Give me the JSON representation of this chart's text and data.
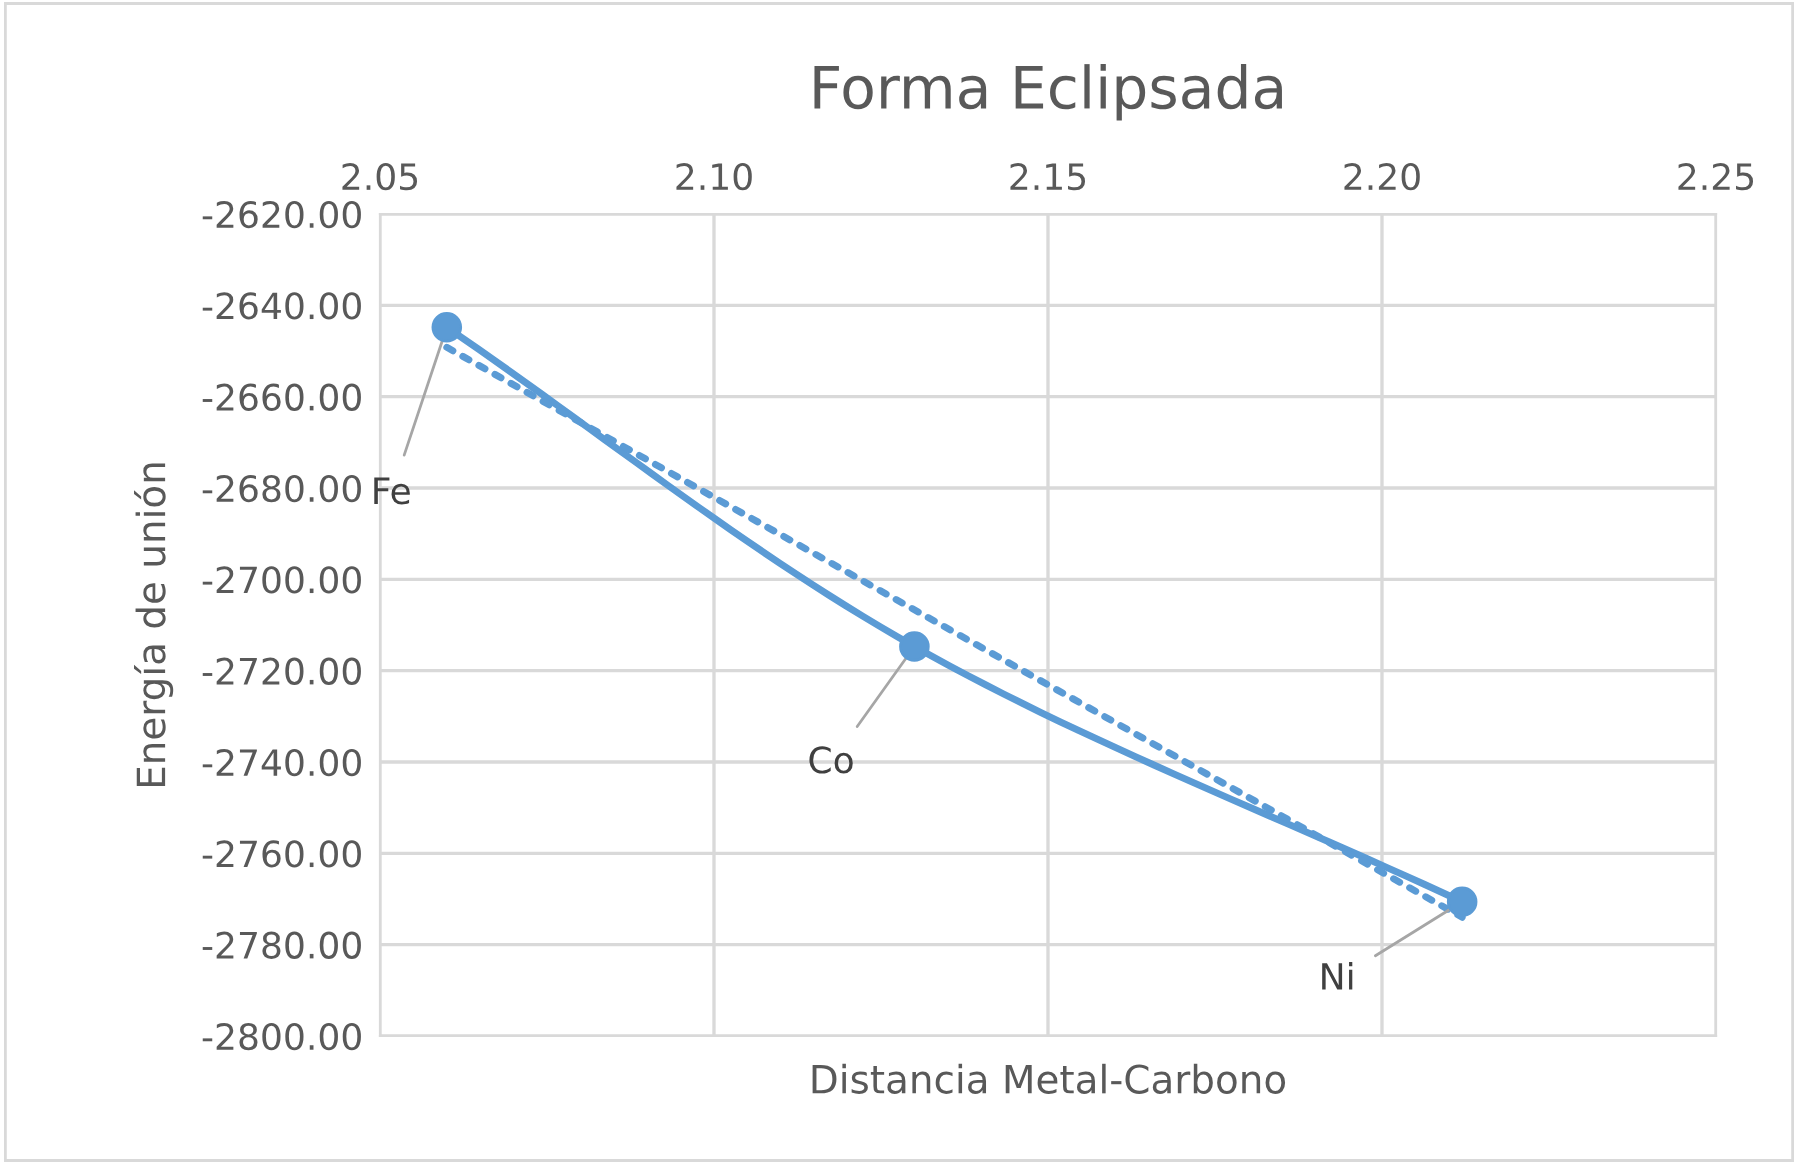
{
  "chart_data": {
    "type": "line",
    "title": "Forma Eclipsada",
    "xlabel": "Distancia Metal-Carbono",
    "ylabel": "Energía de unión",
    "xlim": [
      2.05,
      2.25
    ],
    "xticks": [
      {
        "value": 2.05,
        "label": "2.05"
      },
      {
        "value": 2.1,
        "label": "2.10"
      },
      {
        "value": 2.15,
        "label": "2.15"
      },
      {
        "value": 2.2,
        "label": "2.20"
      },
      {
        "value": 2.25,
        "label": "2.25"
      }
    ],
    "ylim": [
      -2800,
      -2620
    ],
    "yticks": [
      {
        "value": -2800,
        "label": "-2800.00"
      },
      {
        "value": -2780,
        "label": "-2780.00"
      },
      {
        "value": -2760,
        "label": "-2760.00"
      },
      {
        "value": -2740,
        "label": "-2740.00"
      },
      {
        "value": -2720,
        "label": "-2720.00"
      },
      {
        "value": -2700,
        "label": "-2700.00"
      },
      {
        "value": -2680,
        "label": "-2680.00"
      },
      {
        "value": -2660,
        "label": "-2660.00"
      },
      {
        "value": -2640,
        "label": "-2640.00"
      },
      {
        "value": -2620,
        "label": "-2620.00"
      }
    ],
    "grid": true,
    "legend": false,
    "series": [
      {
        "color": "#5b9bd5",
        "x": [
          2.06,
          2.13,
          2.212
        ],
        "values": [
          -2644.8,
          -2714.7,
          -2770.6
        ],
        "marker": "circle",
        "line_style": "solid"
      },
      {
        "color": "#5b9bd5",
        "x": [
          2.06,
          2.212
        ],
        "values": [
          -2649.2,
          -2774.0
        ],
        "marker": "none",
        "line_style": "dotted"
      }
    ],
    "annotations": [
      {
        "text": "Fe",
        "x": 2.06,
        "y": -2644.8
      },
      {
        "text": "Co",
        "x": 2.13,
        "y": -2714.7
      },
      {
        "text": "Ni",
        "x": 2.212,
        "y": -2770.6
      }
    ]
  }
}
